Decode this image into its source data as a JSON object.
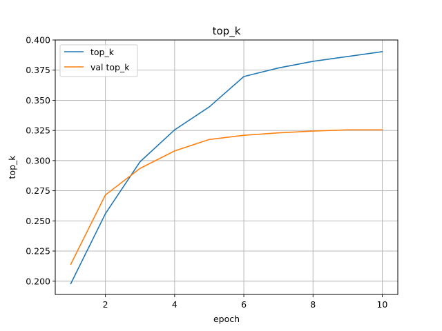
{
  "chart_data": {
    "type": "line",
    "title": "top_k",
    "xlabel": "epoch",
    "ylabel": "top_k",
    "xlim": [
      0.55,
      10.45
    ],
    "ylim": [
      0.189,
      0.4
    ],
    "xticks": [
      2,
      4,
      6,
      8,
      10
    ],
    "xtick_labels": [
      "2",
      "4",
      "6",
      "8",
      "10"
    ],
    "yticks": [
      0.2,
      0.225,
      0.25,
      0.275,
      0.3,
      0.325,
      0.35,
      0.375,
      0.4
    ],
    "ytick_labels": [
      "0.200",
      "0.225",
      "0.250",
      "0.275",
      "0.300",
      "0.325",
      "0.350",
      "0.375",
      "0.400"
    ],
    "grid": true,
    "legend_position": "top-left",
    "x": [
      1,
      2,
      3,
      4,
      5,
      6,
      7,
      8,
      9,
      10
    ],
    "series": [
      {
        "name": "top_k",
        "color": "#1f77b4",
        "values": [
          0.198,
          0.256,
          0.299,
          0.3255,
          0.3445,
          0.3697,
          0.3768,
          0.3823,
          0.3863,
          0.3903
        ]
      },
      {
        "name": "val top_k",
        "color": "#ff7f0e",
        "values": [
          0.214,
          0.2715,
          0.2935,
          0.308,
          0.3175,
          0.321,
          0.323,
          0.3245,
          0.3255,
          0.3255
        ]
      }
    ]
  }
}
